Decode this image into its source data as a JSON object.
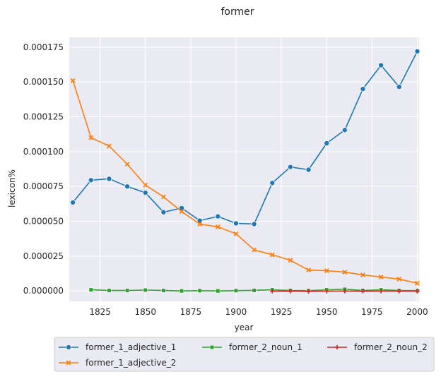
{
  "chart_data": {
    "type": "line",
    "title": "former",
    "xlabel": "year",
    "ylabel": "lexicon%",
    "xlim": [
      1808,
      2001
    ],
    "ylim": [
      -7.5e-06,
      0.000182
    ],
    "xticks": [
      1825,
      1850,
      1875,
      1900,
      1925,
      1950,
      1975,
      2000
    ],
    "yticks": [
      0.0,
      2.5e-05,
      5e-05,
      7.5e-05,
      0.0001,
      0.000125,
      0.00015,
      0.000175
    ],
    "ytick_labels": [
      "0.000000",
      "0.000025",
      "0.000050",
      "0.000075",
      "0.000100",
      "0.000125",
      "0.000150",
      "0.000175"
    ],
    "grid": true,
    "legend_position": "bottom",
    "series": [
      {
        "name": "former_1_adjective_1",
        "color": "#1f77b4",
        "marker": "circle",
        "x": [
          1810,
          1820,
          1830,
          1840,
          1850,
          1860,
          1870,
          1880,
          1890,
          1900,
          1910,
          1920,
          1930,
          1940,
          1950,
          1960,
          1970,
          1980,
          1990,
          2000
        ],
        "y": [
          6.35e-05,
          7.95e-05,
          8.05e-05,
          7.5e-05,
          7.05e-05,
          5.65e-05,
          5.95e-05,
          5.05e-05,
          5.35e-05,
          4.85e-05,
          4.8e-05,
          7.75e-05,
          8.9e-05,
          8.7e-05,
          0.000106,
          0.0001155,
          0.000145,
          0.000162,
          0.0001465,
          0.000172
        ]
      },
      {
        "name": "former_1_adjective_2",
        "color": "#ff7f0e",
        "marker": "x",
        "x": [
          1810,
          1820,
          1830,
          1840,
          1850,
          1860,
          1870,
          1880,
          1890,
          1900,
          1910,
          1920,
          1930,
          1940,
          1950,
          1960,
          1970,
          1980,
          1990,
          2000
        ],
        "y": [
          0.000151,
          0.00011,
          0.000104,
          9.1e-05,
          7.6e-05,
          6.75e-05,
          5.7e-05,
          4.8e-05,
          4.6e-05,
          4.1e-05,
          2.95e-05,
          2.6e-05,
          2.2e-05,
          1.5e-05,
          1.45e-05,
          1.35e-05,
          1.15e-05,
          1e-05,
          8.5e-06,
          5.5e-06
        ]
      },
      {
        "name": "former_2_noun_1",
        "color": "#2ca02c",
        "marker": "square",
        "x": [
          1820,
          1830,
          1840,
          1850,
          1860,
          1870,
          1880,
          1890,
          1900,
          1910,
          1920,
          1930,
          1940,
          1950,
          1960,
          1970,
          1980,
          1990,
          2000
        ],
        "y": [
          8e-07,
          3e-07,
          3e-07,
          6e-07,
          3e-07,
          0.0,
          2e-07,
          0.0,
          2e-07,
          4e-07,
          8e-07,
          3e-07,
          2e-07,
          8e-07,
          1.2e-06,
          3e-07,
          8e-07,
          3e-07,
          2e-07
        ]
      },
      {
        "name": "former_2_noun_2",
        "color": "#d62728",
        "marker": "plus",
        "x": [
          1920,
          1930,
          1940,
          1950,
          1960,
          1970,
          1980,
          1990,
          2000
        ],
        "y": [
          -2e-07,
          -2e-07,
          -3e-07,
          -2e-07,
          -1e-07,
          -2e-07,
          -1e-07,
          -1e-07,
          -2e-07
        ]
      }
    ]
  }
}
